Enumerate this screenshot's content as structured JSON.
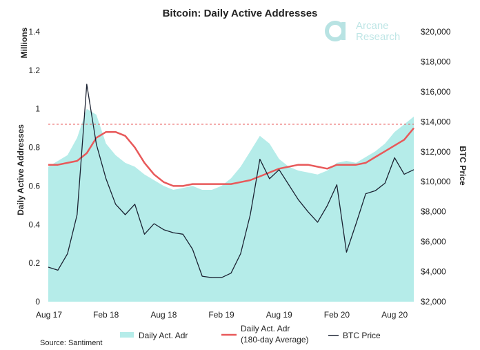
{
  "logo": {
    "line1": "Arcane",
    "line2": "Research",
    "color": "#b8e3e3"
  },
  "source_text": "Source: Santiment",
  "colors": {
    "area": "#b5ece9",
    "average": "#e8595a",
    "price": "#1b2232",
    "ref_line": "#e8595a"
  },
  "chart_data": {
    "type": "area",
    "title": "Bitcoin: Daily Active Addresses",
    "left_axis": {
      "label": "Daily Active Addresses",
      "unit_label": "Millions",
      "ylim": [
        0,
        1.4
      ],
      "ticks": [
        "0",
        "0.2",
        "0.4",
        "0.6",
        "0.8",
        "1",
        "1.2",
        "1.4"
      ]
    },
    "right_axis": {
      "label": "BTC Price",
      "ylim": [
        2000,
        20000
      ],
      "ticks": [
        "$2,000",
        "$4,000",
        "$6,000",
        "$8,000",
        "$10,000",
        "$12,000",
        "$14,000",
        "$16,000",
        "$18,000",
        "$20,000"
      ]
    },
    "x_ticks": [
      "Aug 17",
      "Feb 18",
      "Aug 18",
      "Feb 19",
      "Aug 19",
      "Feb 20",
      "Aug 20"
    ],
    "x_tick_dates": [
      "2017-08",
      "2018-02",
      "2018-08",
      "2019-02",
      "2019-08",
      "2020-02",
      "2020-08"
    ],
    "x_range": [
      "2017-08",
      "2020-10"
    ],
    "reference_line": {
      "axis": "left",
      "value": 0.92,
      "style": "dashed"
    },
    "legend_position": "bottom",
    "series": [
      {
        "name": "Daily Act. Adr",
        "axis": "left",
        "kind": "area",
        "x": [
          "2017-08",
          "2017-09",
          "2017-10",
          "2017-11",
          "2017-12",
          "2018-01",
          "2018-02",
          "2018-03",
          "2018-04",
          "2018-05",
          "2018-06",
          "2018-07",
          "2018-08",
          "2018-09",
          "2018-10",
          "2018-11",
          "2018-12",
          "2019-01",
          "2019-02",
          "2019-03",
          "2019-04",
          "2019-05",
          "2019-06",
          "2019-07",
          "2019-08",
          "2019-09",
          "2019-10",
          "2019-11",
          "2019-12",
          "2020-01",
          "2020-02",
          "2020-03",
          "2020-04",
          "2020-05",
          "2020-06",
          "2020-07",
          "2020-08",
          "2020-09",
          "2020-10"
        ],
        "values": [
          0.7,
          0.73,
          0.76,
          0.85,
          1.0,
          0.97,
          0.82,
          0.76,
          0.72,
          0.7,
          0.66,
          0.63,
          0.6,
          0.58,
          0.59,
          0.6,
          0.58,
          0.58,
          0.6,
          0.64,
          0.7,
          0.78,
          0.86,
          0.82,
          0.74,
          0.7,
          0.68,
          0.67,
          0.66,
          0.68,
          0.72,
          0.73,
          0.72,
          0.75,
          0.78,
          0.82,
          0.88,
          0.92,
          0.96
        ]
      },
      {
        "name": "Daily Act. Adr (180-day Average)",
        "legend_lines": [
          "Daily Act. Adr",
          "(180-day Average)"
        ],
        "axis": "left",
        "kind": "line",
        "x": [
          "2017-08",
          "2017-09",
          "2017-10",
          "2017-11",
          "2017-12",
          "2018-01",
          "2018-02",
          "2018-03",
          "2018-04",
          "2018-05",
          "2018-06",
          "2018-07",
          "2018-08",
          "2018-09",
          "2018-10",
          "2018-11",
          "2018-12",
          "2019-01",
          "2019-02",
          "2019-03",
          "2019-04",
          "2019-05",
          "2019-06",
          "2019-07",
          "2019-08",
          "2019-09",
          "2019-10",
          "2019-11",
          "2019-12",
          "2020-01",
          "2020-02",
          "2020-03",
          "2020-04",
          "2020-05",
          "2020-06",
          "2020-07",
          "2020-08",
          "2020-09",
          "2020-10"
        ],
        "values": [
          0.71,
          0.71,
          0.72,
          0.73,
          0.77,
          0.85,
          0.88,
          0.88,
          0.86,
          0.8,
          0.72,
          0.66,
          0.62,
          0.6,
          0.6,
          0.61,
          0.61,
          0.61,
          0.61,
          0.61,
          0.62,
          0.63,
          0.65,
          0.67,
          0.69,
          0.7,
          0.71,
          0.71,
          0.7,
          0.69,
          0.71,
          0.71,
          0.71,
          0.72,
          0.75,
          0.78,
          0.81,
          0.84,
          0.9
        ]
      },
      {
        "name": "BTC Price",
        "axis": "right",
        "kind": "line",
        "x": [
          "2017-08",
          "2017-09",
          "2017-10",
          "2017-11",
          "2017-12",
          "2018-01",
          "2018-02",
          "2018-03",
          "2018-04",
          "2018-05",
          "2018-06",
          "2018-07",
          "2018-08",
          "2018-09",
          "2018-10",
          "2018-11",
          "2018-12",
          "2019-01",
          "2019-02",
          "2019-03",
          "2019-04",
          "2019-05",
          "2019-06",
          "2019-07",
          "2019-08",
          "2019-09",
          "2019-10",
          "2019-11",
          "2019-12",
          "2020-01",
          "2020-02",
          "2020-03",
          "2020-04",
          "2020-05",
          "2020-06",
          "2020-07",
          "2020-08",
          "2020-09",
          "2020-10"
        ],
        "values": [
          4300,
          4100,
          5200,
          7800,
          16500,
          12500,
          10200,
          8500,
          7800,
          8500,
          6500,
          7200,
          6800,
          6600,
          6500,
          5500,
          3700,
          3600,
          3600,
          3900,
          5200,
          7800,
          11500,
          10200,
          10800,
          9800,
          8800,
          8000,
          7300,
          8400,
          9800,
          5300,
          7200,
          9200,
          9400,
          9900,
          11600,
          10500,
          10800
        ]
      }
    ]
  }
}
